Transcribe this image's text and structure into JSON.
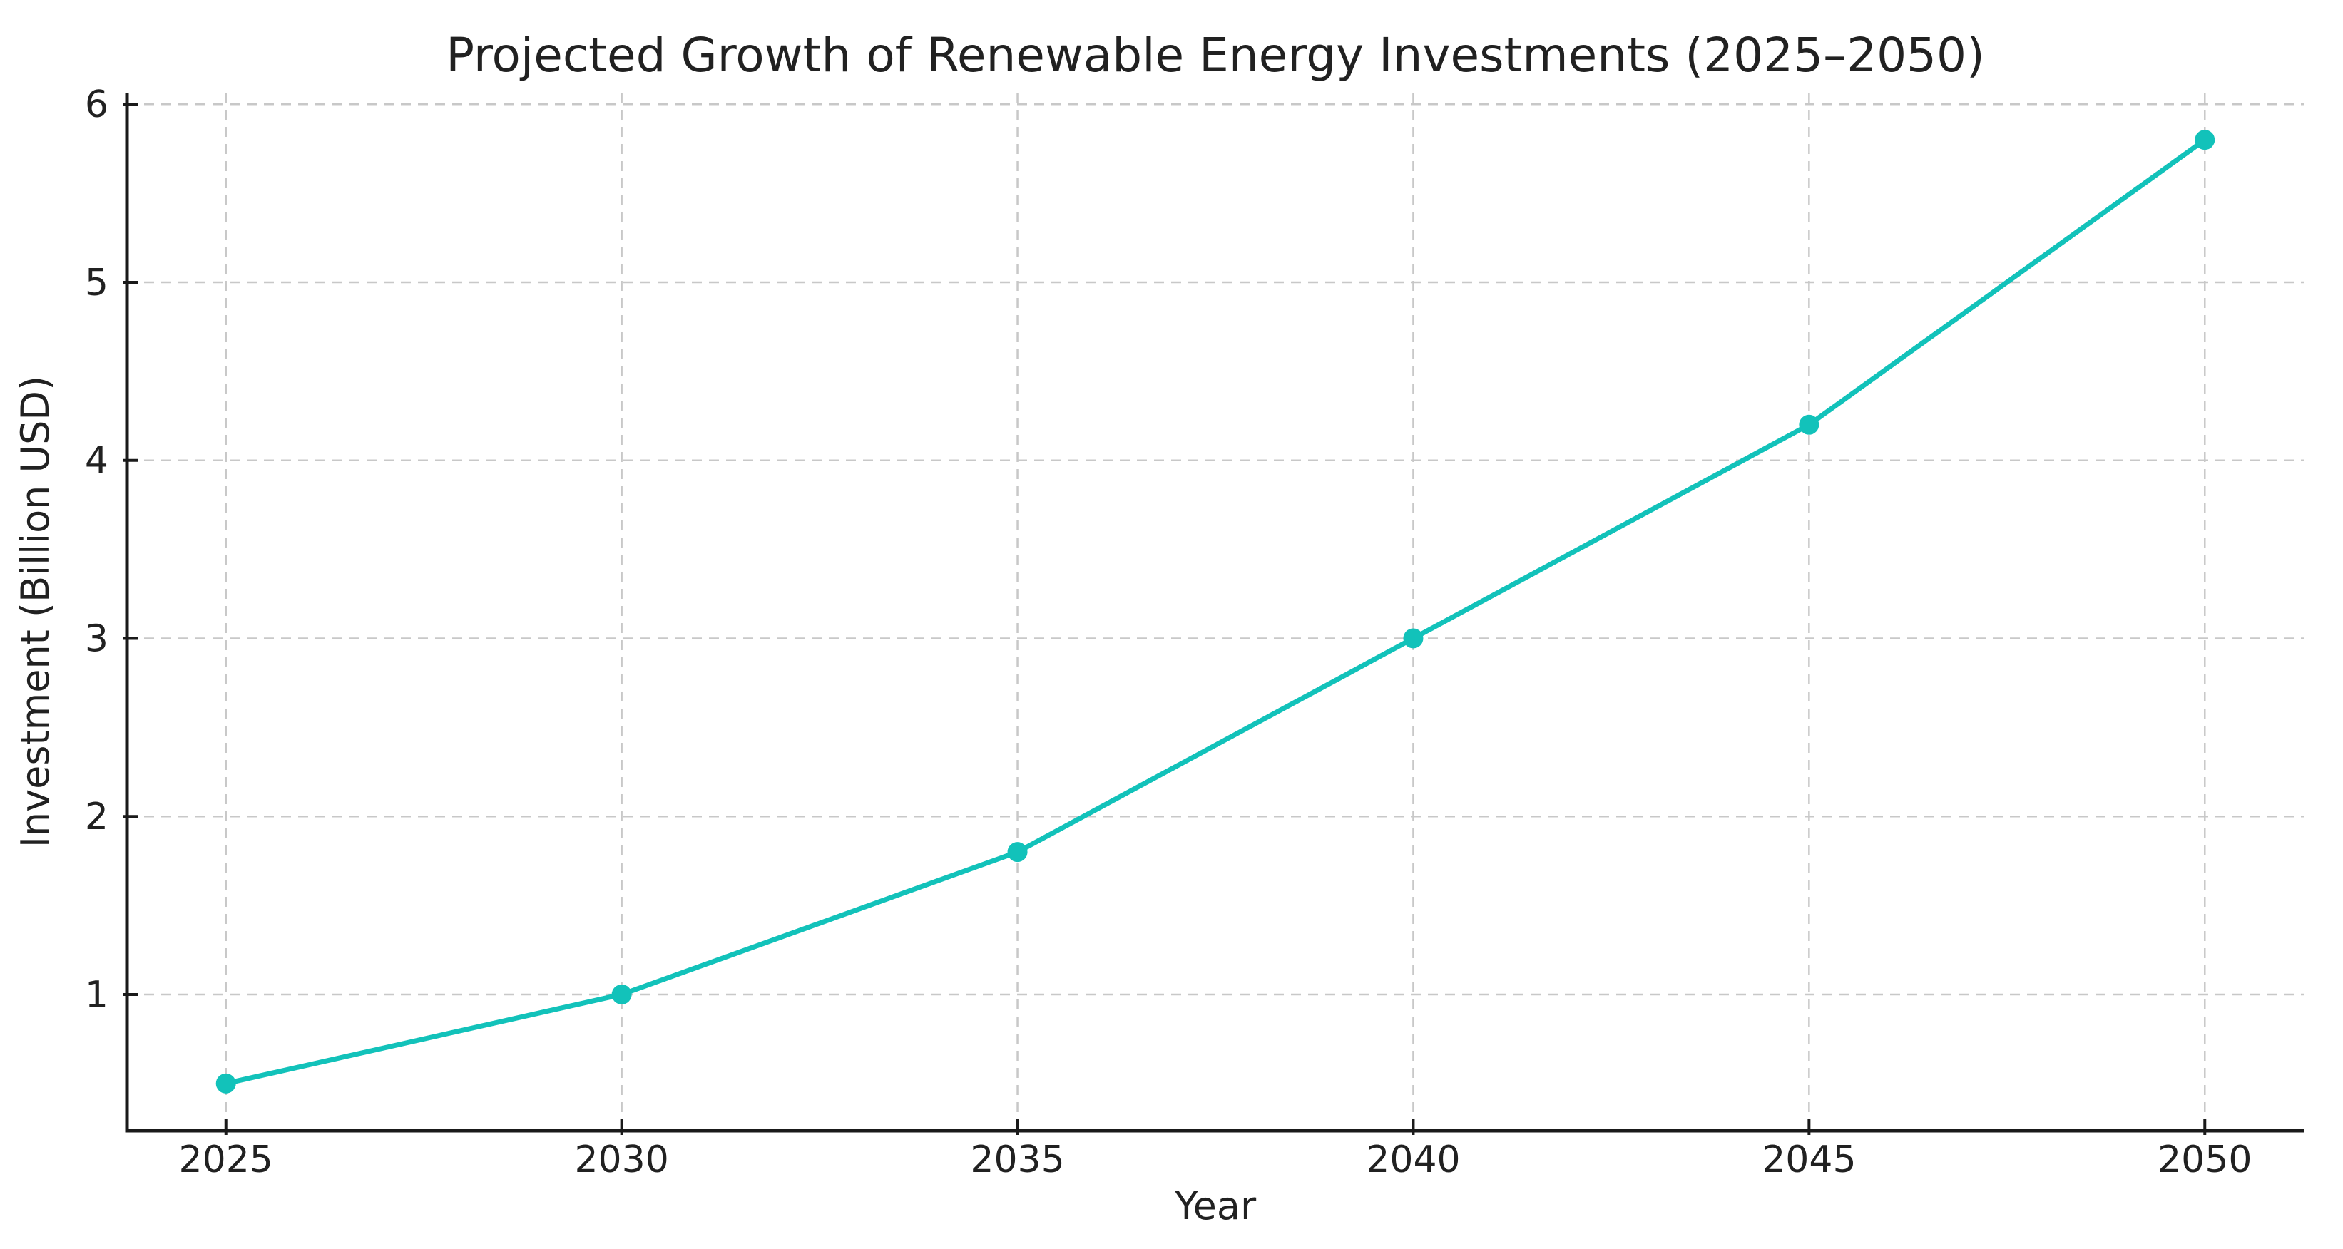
{
  "chart_data": {
    "type": "line",
    "title": "Projected Growth of Renewable Energy Investments (2025–2050)",
    "xlabel": "Year",
    "ylabel": "Investment (Billion USD)",
    "x": [
      2025,
      2030,
      2035,
      2040,
      2045,
      2050
    ],
    "series": [
      {
        "values": [
          0.5,
          1.0,
          1.8,
          3.0,
          4.2,
          5.8
        ]
      }
    ],
    "xticks": [
      2025,
      2030,
      2035,
      2040,
      2045,
      2050
    ],
    "x_tick_labels": [
      "2025",
      "2030",
      "2035",
      "2040",
      "2045",
      "2050"
    ],
    "yticks": [
      1,
      2,
      3,
      4,
      5,
      6
    ],
    "y_tick_labels": [
      "1",
      "2",
      "3",
      "4",
      "5",
      "6"
    ],
    "xlim": [
      2023.75,
      2051.25
    ],
    "ylim": [
      0.235,
      6.065
    ],
    "grid": true,
    "grid_style": "dashed",
    "legend": false,
    "marker": "circle",
    "line_color": "#12c2ba",
    "marker_color": "#12c2ba",
    "grid_color": "#c8c8c8",
    "axis_color": "#1a1a1a",
    "text_color": "#212121",
    "background_color": "#ffffff"
  }
}
